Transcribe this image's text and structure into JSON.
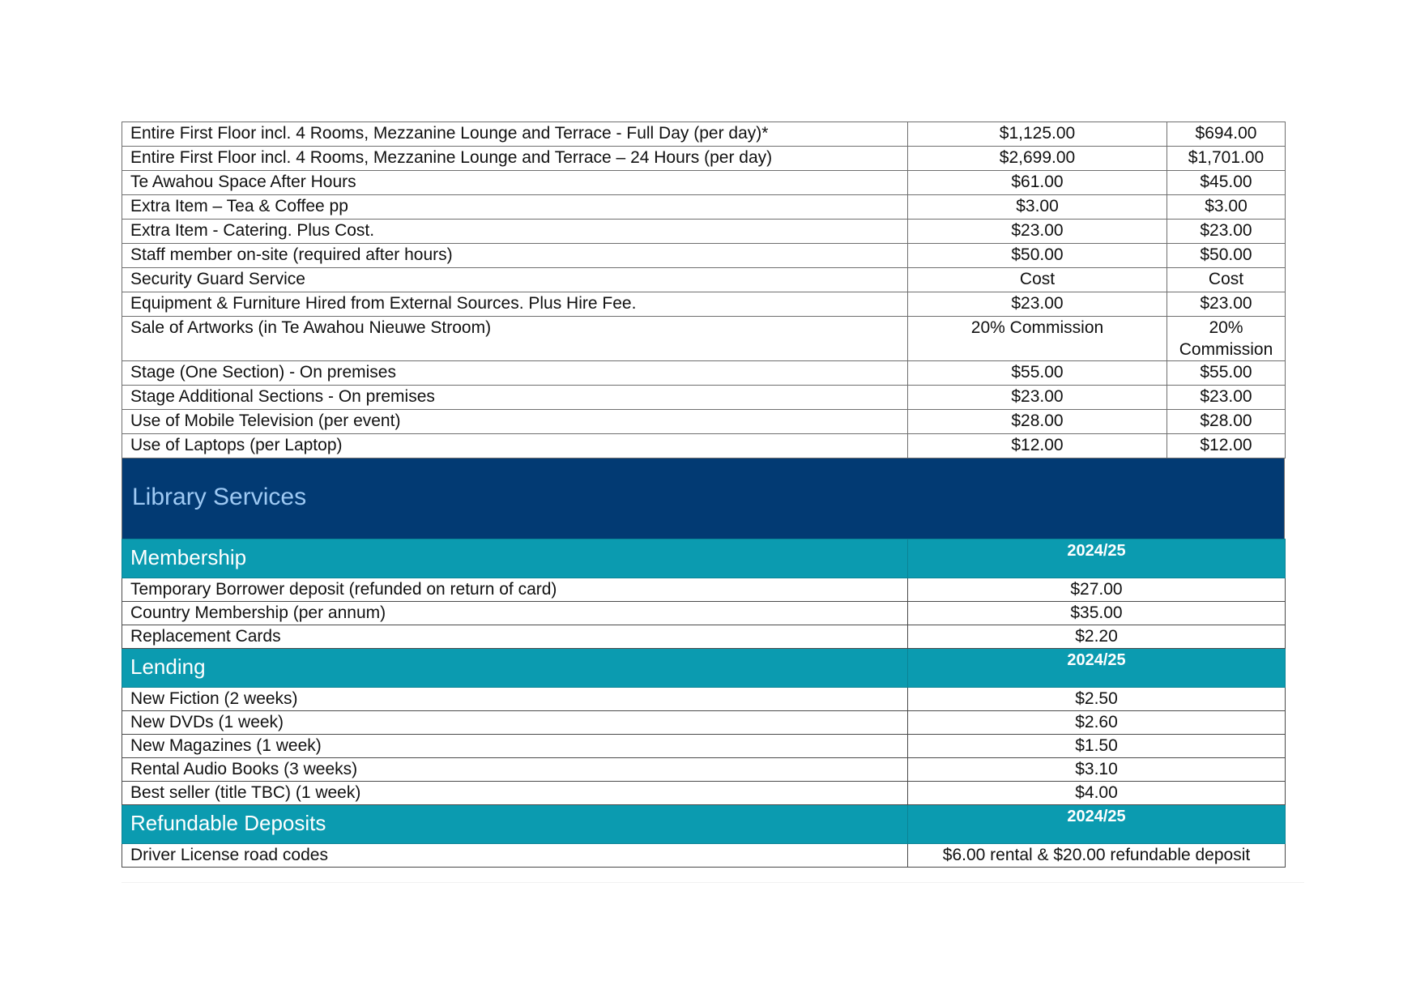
{
  "facility_rows": [
    {
      "item": "Entire First Floor incl. 4 Rooms, Mezzanine Lounge and Terrace - Full Day (per day)*",
      "price_a": "$1,125.00",
      "price_b": "$694.00"
    },
    {
      "item": "Entire First Floor incl. 4 Rooms, Mezzanine Lounge and Terrace – 24 Hours (per day)",
      "price_a": "$2,699.00",
      "price_b": "$1,701.00"
    },
    {
      "item": "Te Awahou Space After Hours",
      "price_a": "$61.00",
      "price_b": "$45.00"
    },
    {
      "item": "Extra Item – Tea & Coffee pp",
      "price_a": "$3.00",
      "price_b": "$3.00"
    },
    {
      "item": "Extra Item - Catering. Plus Cost.",
      "price_a": "$23.00",
      "price_b": "$23.00"
    },
    {
      "item": "Staff member on-site (required after hours)",
      "price_a": "$50.00",
      "price_b": "$50.00"
    },
    {
      "item": "Security Guard Service",
      "price_a": "Cost",
      "price_b": "Cost"
    },
    {
      "item": "Equipment & Furniture Hired from External Sources. Plus Hire Fee.",
      "price_a": "$23.00",
      "price_b": "$23.00"
    },
    {
      "item": "Sale of Artworks (in Te Awahou Nieuwe Stroom)",
      "price_a": "20% Commission",
      "price_b": "20% Commission"
    },
    {
      "item": "Stage (One Section) - On premises",
      "price_a": "$55.00",
      "price_b": "$55.00"
    },
    {
      "item": "Stage Additional Sections - On premises",
      "price_a": "$23.00",
      "price_b": "$23.00"
    },
    {
      "item": "Use of Mobile Television (per event)",
      "price_a": "$28.00",
      "price_b": "$28.00"
    },
    {
      "item": "Use of Laptops (per Laptop)",
      "price_a": "$12.00",
      "price_b": "$12.00"
    }
  ],
  "library": {
    "title": "Library Services",
    "sections": [
      {
        "name": "Membership",
        "year": "2024/25",
        "rows": [
          {
            "item": "Temporary Borrower deposit (refunded on return of card)",
            "price": "$27.00"
          },
          {
            "item": "Country Membership (per annum)",
            "price": "$35.00"
          },
          {
            "item": "Replacement Cards",
            "price": "$2.20"
          }
        ]
      },
      {
        "name": "Lending",
        "year": "2024/25",
        "rows": [
          {
            "item": "New Fiction (2 weeks)",
            "price": "$2.50"
          },
          {
            "item": "New DVDs (1 week)",
            "price": "$2.60"
          },
          {
            "item": "New Magazines (1 week)",
            "price": "$1.50"
          },
          {
            "item": "Rental Audio Books (3 weeks)",
            "price": "$3.10"
          },
          {
            "item": "Best seller (title TBC) (1 week)",
            "price": "$4.00"
          }
        ]
      },
      {
        "name": "Refundable Deposits",
        "year": "2024/25",
        "rows": [
          {
            "item": "Driver License road codes",
            "price": "$6.00 rental & $20.00 refundable deposit"
          }
        ]
      }
    ]
  },
  "colors": {
    "banner": "#023a73",
    "banner_text": "#9ec9f3",
    "section_header": "#0b9bb0"
  }
}
